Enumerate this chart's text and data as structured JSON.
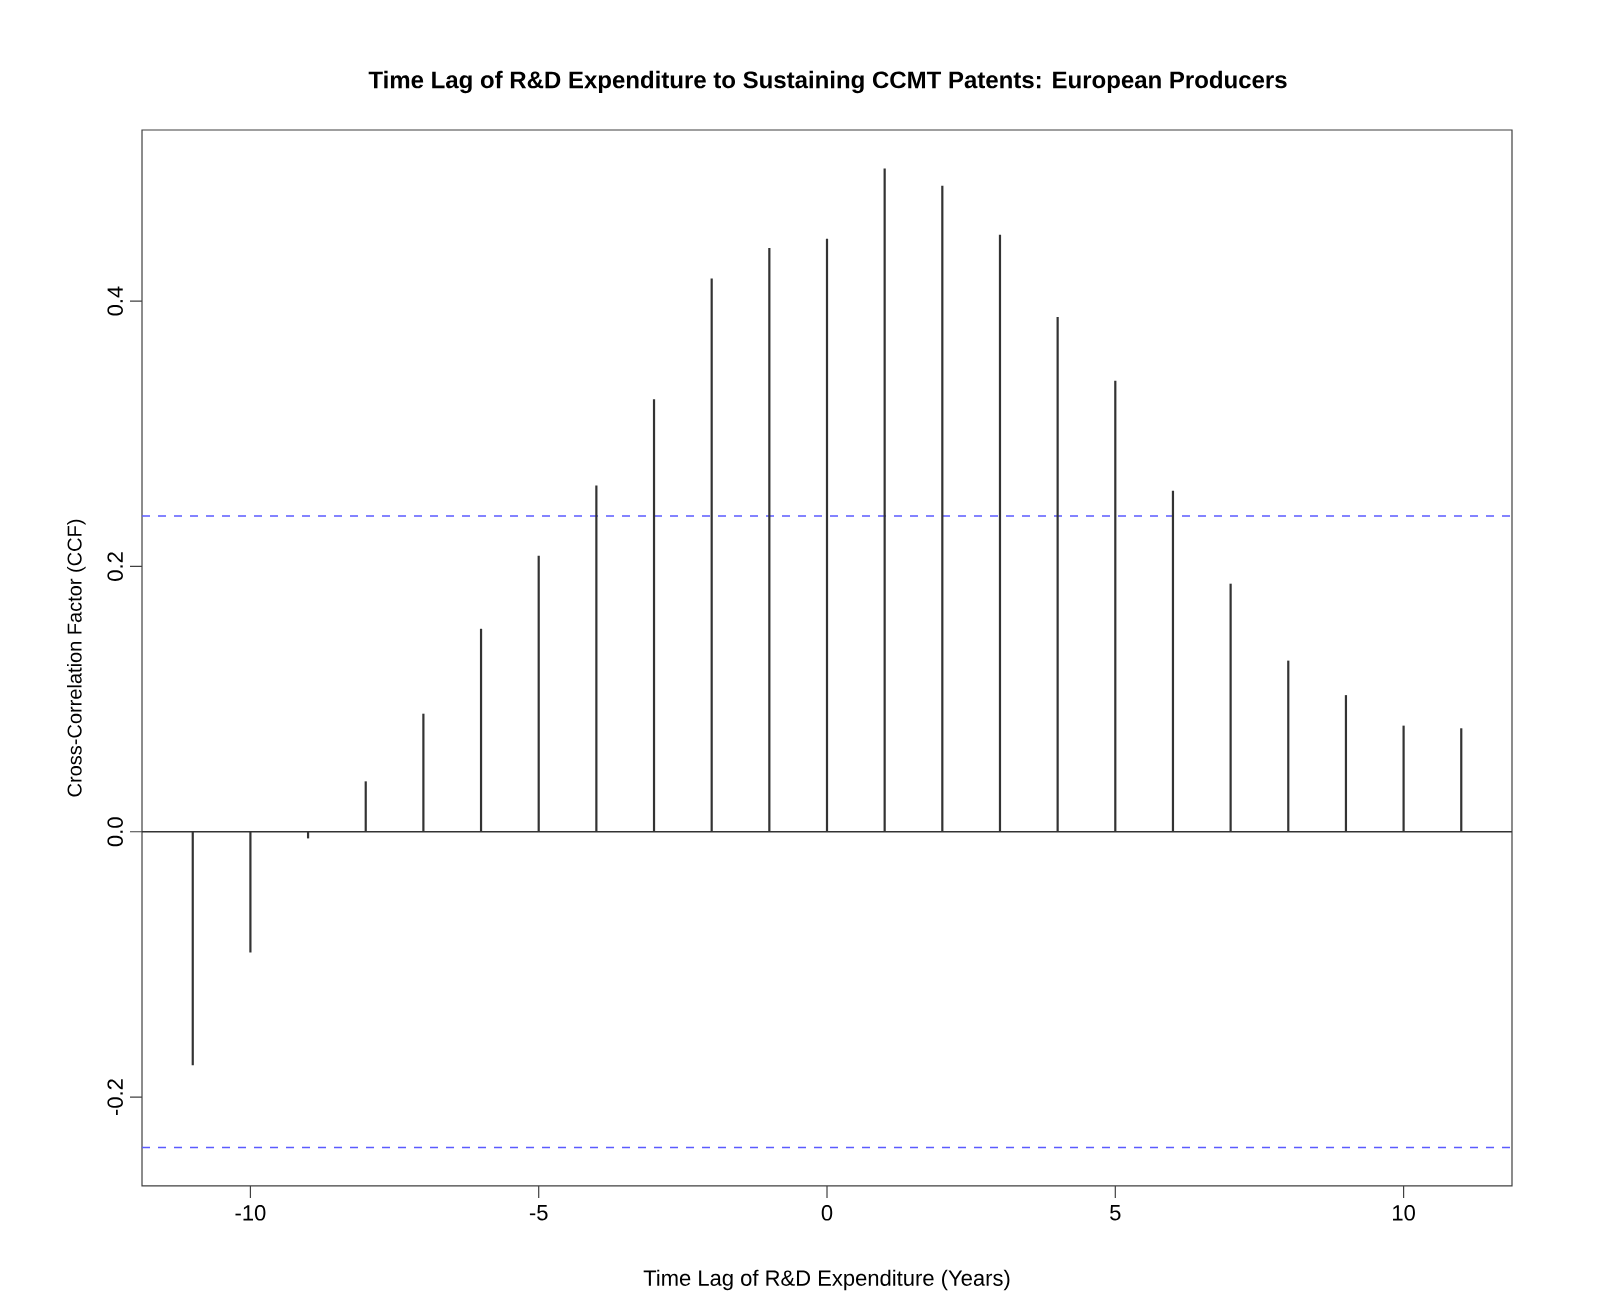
{
  "chart_data": {
    "type": "bar",
    "title": "Time Lag of R&D Expenditure to Sustaining CCMT Patents: European Producers",
    "xlabel": "Time Lag of R&D Expenditure (Years)",
    "ylabel": "Cross-Correlation Factor (CCF)",
    "x": [
      -11,
      -10,
      -9,
      -8,
      -7,
      -6,
      -5,
      -4,
      -3,
      -2,
      -1,
      0,
      1,
      2,
      3,
      4,
      5,
      6,
      7,
      8,
      9,
      10,
      11
    ],
    "values": [
      -0.176,
      -0.091,
      -0.005,
      0.038,
      0.089,
      0.153,
      0.208,
      0.261,
      0.326,
      0.417,
      0.44,
      0.447,
      0.5,
      0.487,
      0.45,
      0.388,
      0.34,
      0.257,
      0.187,
      0.129,
      0.103,
      0.08,
      0.078
    ],
    "color": "#333333",
    "xlim": [
      -11.88,
      11.88
    ],
    "ylim": [
      -0.267,
      0.529
    ],
    "xticks": [
      -10,
      -5,
      0,
      5,
      10
    ],
    "yticks": [
      {
        "value": -0.2,
        "label": "-0.2"
      },
      {
        "value": 0,
        "label": "0.0"
      },
      {
        "value": 0.2,
        "label": "0.2"
      },
      {
        "value": 0.4,
        "label": "0.4"
      }
    ],
    "ref_lines": [
      {
        "axis": "y",
        "value": 0,
        "color": "#333333",
        "line_style": "solid"
      },
      {
        "axis": "y",
        "value": 0.238,
        "color": "#5b5bff",
        "line_style": "dashed"
      },
      {
        "axis": "y",
        "value": -0.238,
        "color": "#5b5bff",
        "line_style": "dashed"
      }
    ],
    "grid": false
  }
}
